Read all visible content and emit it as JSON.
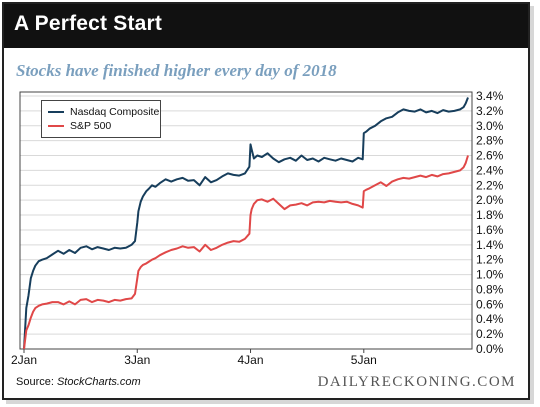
{
  "title": "A Perfect Start",
  "subtitle": "Stocks have finished higher every day of 2018",
  "source_prefix": "Source: ",
  "source_name": "StockCharts.com",
  "brand": "DAILYRECKONING.COM",
  "colors": {
    "title_bg": "#111111",
    "subtitle": "#7a9fbe",
    "nasdaq": "#173e5c",
    "sp500": "#e04848",
    "grid": "#d9d9d9"
  },
  "chart_data": {
    "type": "line",
    "title": "",
    "xlabel": "",
    "ylabel": "",
    "x_ticks": [
      "2Jan",
      "3Jan",
      "4Jan",
      "5Jan"
    ],
    "y_ticks": [
      "0.0%",
      "0.2%",
      "0.4%",
      "0.6%",
      "0.8%",
      "1.0%",
      "1.2%",
      "1.4%",
      "1.6%",
      "1.8%",
      "2.0%",
      "2.2%",
      "2.4%",
      "2.6%",
      "2.8%",
      "3.0%",
      "3.2%",
      "3.4%"
    ],
    "ylim": [
      0,
      3.4
    ],
    "y_axis_side": "right",
    "grid": "horizontal",
    "legend_position": "top-left",
    "x": [
      0,
      0.02,
      0.04,
      0.06,
      0.08,
      0.1,
      0.13,
      0.16,
      0.2,
      0.25,
      0.3,
      0.35,
      0.4,
      0.45,
      0.5,
      0.55,
      0.6,
      0.65,
      0.7,
      0.75,
      0.8,
      0.85,
      0.9,
      0.95,
      0.98,
      1.0,
      1.01,
      1.03,
      1.05,
      1.08,
      1.1,
      1.13,
      1.16,
      1.2,
      1.25,
      1.3,
      1.35,
      1.4,
      1.45,
      1.5,
      1.55,
      1.6,
      1.65,
      1.7,
      1.75,
      1.8,
      1.85,
      1.9,
      1.95,
      1.99,
      2.0,
      2.01,
      2.03,
      2.06,
      2.1,
      2.15,
      2.2,
      2.25,
      2.3,
      2.35,
      2.4,
      2.45,
      2.5,
      2.55,
      2.6,
      2.65,
      2.7,
      2.75,
      2.8,
      2.85,
      2.9,
      2.95,
      2.99,
      3.0,
      3.02,
      3.05,
      3.1,
      3.15,
      3.2,
      3.25,
      3.3,
      3.35,
      3.4,
      3.45,
      3.5,
      3.55,
      3.6,
      3.65,
      3.7,
      3.75,
      3.8,
      3.85,
      3.88,
      3.9,
      3.92
    ],
    "series": [
      {
        "name": "Nasdaq Composite",
        "color": "#173e5c",
        "values": [
          0.0,
          0.55,
          0.72,
          0.95,
          1.05,
          1.12,
          1.18,
          1.2,
          1.22,
          1.27,
          1.32,
          1.28,
          1.33,
          1.29,
          1.36,
          1.38,
          1.34,
          1.37,
          1.35,
          1.33,
          1.36,
          1.35,
          1.36,
          1.4,
          1.45,
          1.7,
          1.85,
          1.98,
          2.05,
          2.12,
          2.15,
          2.2,
          2.18,
          2.23,
          2.28,
          2.25,
          2.28,
          2.3,
          2.26,
          2.27,
          2.2,
          2.31,
          2.24,
          2.27,
          2.32,
          2.36,
          2.34,
          2.33,
          2.36,
          2.45,
          2.75,
          2.68,
          2.56,
          2.6,
          2.58,
          2.63,
          2.56,
          2.51,
          2.55,
          2.57,
          2.53,
          2.6,
          2.54,
          2.56,
          2.52,
          2.57,
          2.55,
          2.53,
          2.56,
          2.54,
          2.52,
          2.57,
          2.55,
          2.9,
          2.92,
          2.96,
          3.0,
          3.06,
          3.1,
          3.12,
          3.18,
          3.22,
          3.2,
          3.19,
          3.22,
          3.18,
          3.2,
          3.17,
          3.21,
          3.19,
          3.2,
          3.22,
          3.25,
          3.3,
          3.38
        ]
      },
      {
        "name": "S&P 500",
        "color": "#e04848",
        "values": [
          0.0,
          0.25,
          0.32,
          0.42,
          0.5,
          0.55,
          0.58,
          0.6,
          0.61,
          0.63,
          0.63,
          0.6,
          0.64,
          0.6,
          0.66,
          0.67,
          0.63,
          0.66,
          0.65,
          0.63,
          0.66,
          0.65,
          0.67,
          0.68,
          0.74,
          0.95,
          1.05,
          1.1,
          1.13,
          1.15,
          1.17,
          1.2,
          1.22,
          1.26,
          1.3,
          1.33,
          1.35,
          1.38,
          1.36,
          1.37,
          1.31,
          1.4,
          1.33,
          1.36,
          1.4,
          1.43,
          1.45,
          1.44,
          1.48,
          1.55,
          1.8,
          1.88,
          1.95,
          2.0,
          2.01,
          1.98,
          2.02,
          1.95,
          1.88,
          1.93,
          1.94,
          1.96,
          1.93,
          1.97,
          1.98,
          1.97,
          1.99,
          1.98,
          1.97,
          1.98,
          1.95,
          1.93,
          1.9,
          2.12,
          2.14,
          2.16,
          2.2,
          2.24,
          2.19,
          2.25,
          2.28,
          2.3,
          2.29,
          2.31,
          2.33,
          2.31,
          2.34,
          2.32,
          2.35,
          2.36,
          2.38,
          2.4,
          2.44,
          2.5,
          2.6
        ]
      }
    ]
  }
}
